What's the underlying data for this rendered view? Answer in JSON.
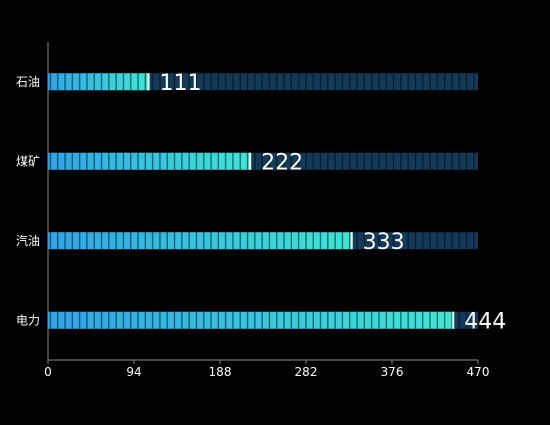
{
  "chart_data": {
    "type": "bar",
    "orientation": "horizontal",
    "title": "",
    "xlabel": "",
    "ylabel": "",
    "categories": [
      "石油",
      "煤矿",
      "汽油",
      "电力"
    ],
    "values": [
      111,
      222,
      333,
      444
    ],
    "xlim": [
      0,
      470
    ],
    "x_ticks": [
      0,
      94,
      188,
      282,
      376,
      470
    ],
    "max_value": 470,
    "grid": false,
    "legend": "none",
    "bar_style": "segmented",
    "colors": {
      "background": "#000000",
      "bar_start": "#2fa4e8",
      "bar_end": "#3ee6d6",
      "track": "#143a5a",
      "axis": "#8a8a8a",
      "tick_label": "#ffffff",
      "value_label": "#ffffff"
    }
  }
}
